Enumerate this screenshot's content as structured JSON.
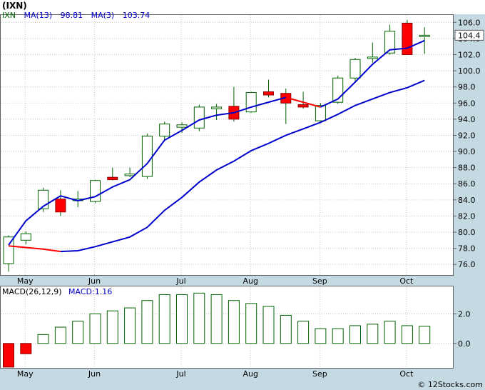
{
  "title": "(IXN)",
  "legend": {
    "ticker": "IXN",
    "ma13_label": "MA(13)",
    "ma13_value": "98.81",
    "ma3_label": "MA(3)",
    "ma3_value": "103.74"
  },
  "last_price_label": "104.4",
  "watermark": "© 12Stocks.com",
  "colors": {
    "background": "#ffffff",
    "axis_band": "#c5d9e2",
    "grid": "#c8c8c8",
    "up_fill": "#ffffff",
    "up_stroke": "#006400",
    "down_fill": "#ff0000",
    "ma_line": "#0000cc",
    "ma_down_segment": "#ff0000",
    "macd_bar_stroke": "#006400",
    "legend_text": "#0000cc",
    "ticker_text": "#006400"
  },
  "chart_data": [
    {
      "type": "candlestick",
      "title": "(IXN)",
      "x_labels": [
        "May",
        "Jun",
        "Jul",
        "Aug",
        "Sep",
        "Oct"
      ],
      "y_ticks": [
        76.0,
        78.0,
        80.0,
        82.0,
        84.0,
        86.0,
        88.0,
        90.0,
        92.0,
        94.0,
        96.0,
        98.0,
        100.0,
        102.0,
        104.0,
        106.0
      ],
      "ylim": [
        74.6,
        107.0
      ],
      "grid": true,
      "candles": [
        {
          "open": 76.1,
          "high": 79.6,
          "low": 75.1,
          "close": 79.4
        },
        {
          "open": 79.0,
          "high": 80.1,
          "low": 78.5,
          "close": 79.8
        },
        {
          "open": 82.9,
          "high": 85.5,
          "low": 82.5,
          "close": 85.2
        },
        {
          "open": 84.1,
          "high": 85.2,
          "low": 82.0,
          "close": 82.5
        },
        {
          "open": 83.9,
          "high": 85.1,
          "low": 83.1,
          "close": 84.1
        },
        {
          "open": 83.8,
          "high": 86.5,
          "low": 83.6,
          "close": 86.4
        },
        {
          "open": 86.8,
          "high": 88.0,
          "low": 86.4,
          "close": 86.5
        },
        {
          "open": 87.0,
          "high": 88.0,
          "low": 86.8,
          "close": 87.2
        },
        {
          "open": 86.9,
          "high": 92.2,
          "low": 86.6,
          "close": 91.9
        },
        {
          "open": 91.9,
          "high": 93.7,
          "low": 91.3,
          "close": 93.4
        },
        {
          "open": 93.0,
          "high": 93.6,
          "low": 92.3,
          "close": 93.3
        },
        {
          "open": 92.9,
          "high": 95.8,
          "low": 92.5,
          "close": 95.5
        },
        {
          "open": 95.3,
          "high": 95.9,
          "low": 93.9,
          "close": 95.5
        },
        {
          "open": 95.6,
          "high": 98.0,
          "low": 93.7,
          "close": 94.0
        },
        {
          "open": 94.9,
          "high": 97.4,
          "low": 94.8,
          "close": 97.3
        },
        {
          "open": 97.4,
          "high": 98.9,
          "low": 96.7,
          "close": 97.0
        },
        {
          "open": 97.2,
          "high": 97.8,
          "low": 93.4,
          "close": 96.0
        },
        {
          "open": 95.8,
          "high": 97.4,
          "low": 95.3,
          "close": 95.5
        },
        {
          "open": 93.8,
          "high": 96.0,
          "low": 93.6,
          "close": 95.7
        },
        {
          "open": 96.1,
          "high": 99.4,
          "low": 95.9,
          "close": 99.1
        },
        {
          "open": 99.1,
          "high": 101.6,
          "low": 98.7,
          "close": 101.4
        },
        {
          "open": 101.6,
          "high": 103.5,
          "low": 101.0,
          "close": 101.7
        },
        {
          "open": 102.2,
          "high": 105.7,
          "low": 102.0,
          "close": 104.9
        },
        {
          "open": 105.9,
          "high": 106.3,
          "low": 102.0,
          "close": 102.0
        },
        {
          "open": 104.3,
          "high": 105.4,
          "low": 102.1,
          "close": 104.4
        }
      ],
      "ma3": [
        78.4,
        81.4,
        83.2,
        84.5,
        83.9,
        84.4,
        85.6,
        86.5,
        88.5,
        91.4,
        92.6,
        93.9,
        94.5,
        94.8,
        95.5,
        96.1,
        96.7,
        96.1,
        95.5,
        96.5,
        98.6,
        100.8,
        102.6,
        102.8,
        103.74
      ],
      "ma3_down_segments": [
        [
          16,
          18
        ]
      ],
      "ma13": [
        {
          "i": 0,
          "v": 78.3
        },
        {
          "i": 2,
          "v": 77.9
        },
        {
          "i": 3,
          "v": 77.6
        },
        {
          "i": 4,
          "v": 77.7
        },
        {
          "i": 5,
          "v": 78.2
        },
        {
          "i": 6,
          "v": 78.8
        },
        {
          "i": 7,
          "v": 79.4
        },
        {
          "i": 8,
          "v": 80.6
        },
        {
          "i": 9,
          "v": 82.7
        },
        {
          "i": 10,
          "v": 84.3
        },
        {
          "i": 11,
          "v": 86.2
        },
        {
          "i": 12,
          "v": 87.7
        },
        {
          "i": 13,
          "v": 88.8
        },
        {
          "i": 14,
          "v": 90.1
        },
        {
          "i": 15,
          "v": 91.0
        },
        {
          "i": 16,
          "v": 92.0
        },
        {
          "i": 17,
          "v": 92.8
        },
        {
          "i": 18,
          "v": 93.6
        },
        {
          "i": 19,
          "v": 94.6
        },
        {
          "i": 20,
          "v": 95.7
        },
        {
          "i": 21,
          "v": 96.5
        },
        {
          "i": 22,
          "v": 97.3
        },
        {
          "i": 23,
          "v": 97.9
        },
        {
          "i": 24,
          "v": 98.81
        }
      ],
      "ma13_red_segments": [
        [
          0,
          3
        ]
      ]
    },
    {
      "type": "bar",
      "title": "MACD(26,12,9)",
      "legend": "MACD:1.16",
      "x_labels": [
        "May",
        "Jun",
        "Jul",
        "Aug",
        "Sep",
        "Oct"
      ],
      "y_ticks": [
        0.0,
        2.0
      ],
      "ylim": [
        -1.7,
        3.9
      ],
      "values": [
        -1.6,
        -0.7,
        0.6,
        1.1,
        1.5,
        2.0,
        2.2,
        2.4,
        2.9,
        3.3,
        3.3,
        3.4,
        3.3,
        2.9,
        2.7,
        2.5,
        1.9,
        1.5,
        1.0,
        1.0,
        1.2,
        1.3,
        1.5,
        1.2,
        1.16
      ]
    }
  ]
}
